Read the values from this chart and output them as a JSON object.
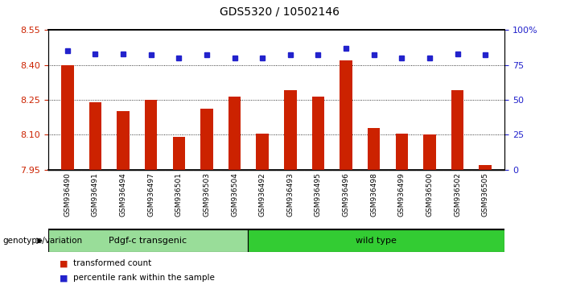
{
  "title": "GDS5320 / 10502146",
  "categories": [
    "GSM936490",
    "GSM936491",
    "GSM936494",
    "GSM936497",
    "GSM936501",
    "GSM936503",
    "GSM936504",
    "GSM936492",
    "GSM936493",
    "GSM936495",
    "GSM936496",
    "GSM936498",
    "GSM936499",
    "GSM936500",
    "GSM936502",
    "GSM936505"
  ],
  "bar_values": [
    8.4,
    8.24,
    8.2,
    8.25,
    8.09,
    8.21,
    8.265,
    8.105,
    8.29,
    8.265,
    8.42,
    8.13,
    8.105,
    8.1,
    8.29,
    7.97
  ],
  "percentile_values": [
    85,
    83,
    83,
    82,
    80,
    82,
    80,
    80,
    82,
    82,
    87,
    82,
    80,
    80,
    83,
    82
  ],
  "ylim_left": [
    7.95,
    8.55
  ],
  "ylim_right": [
    0,
    100
  ],
  "yticks_left": [
    7.95,
    8.1,
    8.25,
    8.4,
    8.55
  ],
  "yticks_right": [
    0,
    25,
    50,
    75,
    100
  ],
  "ytick_labels_right": [
    "0",
    "25",
    "50",
    "75",
    "100%"
  ],
  "grid_values": [
    8.1,
    8.25,
    8.4
  ],
  "group1_label": "Pdgf-c transgenic",
  "group2_label": "wild type",
  "group1_count": 7,
  "group2_count": 9,
  "group_label_prefix": "genotype/variation",
  "bar_color": "#cc2200",
  "percentile_color": "#2222cc",
  "group1_color": "#99dd99",
  "group2_color": "#33cc33",
  "tick_label_color_left": "#cc2200",
  "tick_label_color_right": "#2222cc",
  "legend_bar_label": "transformed count",
  "legend_pct_label": "percentile rank within the sample",
  "background_color": "#ffffff",
  "axes_bg_color": "#ffffff",
  "xticklabel_bg": "#cccccc"
}
